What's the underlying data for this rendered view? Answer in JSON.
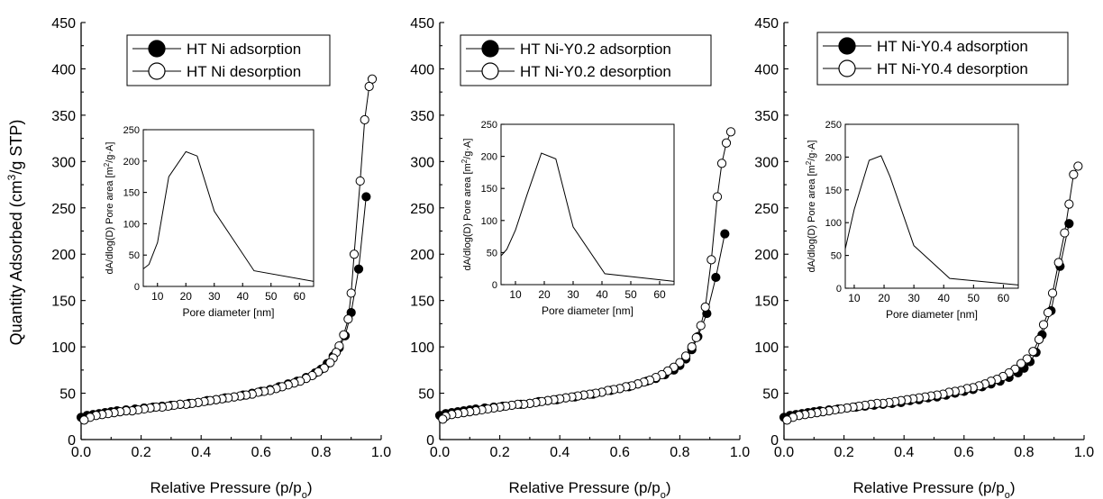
{
  "figure": {
    "ylabel_main": "Quantity Adsorbed (cm",
    "ylabel_sup": "3",
    "ylabel_tail": "/g STP)",
    "xlabel_main": "Relative Pressure (p/p",
    "xlabel_sub": "o",
    "xlabel_close": ")",
    "inset_ylabel_main": "dA/dlog(D) Pore area [m",
    "inset_ylabel_sup": "2",
    "inset_ylabel_tail": "/g·A]",
    "inset_xlabel": "Pore diameter [nm]"
  },
  "chart_data": [
    {
      "type": "scatter",
      "xlim": [
        0,
        1.0
      ],
      "ylim": [
        0,
        450
      ],
      "xticks": [
        "0.0",
        "0.2",
        "0.4",
        "0.6",
        "0.8",
        "1.0"
      ],
      "yticks": [
        "0",
        "50",
        "100",
        "150",
        "200",
        "250",
        "300",
        "350",
        "400",
        "450"
      ],
      "legend_position": "top",
      "series": [
        {
          "name": "HT Ni adsorption",
          "marker": "filled-circle",
          "x": [
            0.0,
            0.02,
            0.04,
            0.06,
            0.08,
            0.1,
            0.12,
            0.15,
            0.18,
            0.21,
            0.24,
            0.27,
            0.3,
            0.33,
            0.36,
            0.39,
            0.42,
            0.45,
            0.48,
            0.51,
            0.54,
            0.57,
            0.6,
            0.63,
            0.66,
            0.69,
            0.72,
            0.75,
            0.78,
            0.8,
            0.82,
            0.84,
            0.86,
            0.88,
            0.9,
            0.925,
            0.95
          ],
          "y": [
            24,
            26,
            27,
            28,
            29,
            30,
            31,
            32,
            33,
            34,
            35,
            36,
            37,
            38,
            39,
            40,
            42,
            43,
            45,
            46,
            48,
            50,
            52,
            54,
            57,
            60,
            63,
            67,
            72,
            76,
            82,
            90,
            99,
            112,
            137,
            184,
            262
          ]
        },
        {
          "name": "HT Ni desorption",
          "marker": "open-circle",
          "x": [
            0.97,
            0.96,
            0.945,
            0.93,
            0.91,
            0.9,
            0.89,
            0.875,
            0.86,
            0.85,
            0.84,
            0.83,
            0.81,
            0.79,
            0.77,
            0.75,
            0.73,
            0.71,
            0.69,
            0.67,
            0.65,
            0.63,
            0.61,
            0.59,
            0.57,
            0.55,
            0.53,
            0.51,
            0.49,
            0.47,
            0.45,
            0.43,
            0.41,
            0.39,
            0.37,
            0.35,
            0.33,
            0.31,
            0.29,
            0.27,
            0.25,
            0.23,
            0.21,
            0.19,
            0.17,
            0.15,
            0.13,
            0.11,
            0.09,
            0.07,
            0.05,
            0.03,
            0.01
          ],
          "y": [
            389,
            381,
            345,
            279,
            200,
            158,
            130,
            113,
            101,
            94,
            88,
            83,
            77,
            73,
            69,
            66,
            63,
            61,
            59,
            57,
            55,
            53,
            52,
            51,
            49,
            48,
            47,
            46,
            45,
            44,
            43,
            42,
            41,
            40,
            39,
            38,
            38,
            37,
            36,
            35,
            35,
            34,
            33,
            32,
            31,
            31,
            30,
            29,
            28,
            27,
            26,
            24,
            21
          ]
        }
      ],
      "inset": {
        "type": "line",
        "xlim": [
          5,
          65
        ],
        "ylim": [
          0,
          250
        ],
        "xticks": [
          "10",
          "20",
          "30",
          "40",
          "50",
          "60"
        ],
        "yticks": [
          "0",
          "50",
          "100",
          "150",
          "200",
          "250"
        ],
        "x": [
          5,
          7,
          10,
          14,
          20,
          24,
          30,
          44,
          65
        ],
        "y": [
          28,
          35,
          70,
          175,
          215,
          208,
          120,
          25,
          8
        ]
      }
    },
    {
      "type": "scatter",
      "xlim": [
        0,
        1.0
      ],
      "ylim": [
        0,
        450
      ],
      "xticks": [
        "0.0",
        "0.2",
        "0.4",
        "0.6",
        "0.8",
        "1.0"
      ],
      "yticks": [
        "0",
        "50",
        "100",
        "150",
        "200",
        "250",
        "300",
        "350",
        "400",
        "450"
      ],
      "legend_position": "top",
      "series": [
        {
          "name": "HT Ni-Y0.2 adsorption",
          "marker": "filled-circle",
          "x": [
            0.0,
            0.02,
            0.04,
            0.06,
            0.08,
            0.1,
            0.12,
            0.15,
            0.18,
            0.21,
            0.24,
            0.27,
            0.3,
            0.33,
            0.36,
            0.39,
            0.42,
            0.45,
            0.48,
            0.51,
            0.54,
            0.57,
            0.6,
            0.63,
            0.66,
            0.69,
            0.72,
            0.75,
            0.78,
            0.8,
            0.82,
            0.84,
            0.86,
            0.89,
            0.92,
            0.95
          ],
          "y": [
            26,
            28,
            29,
            30,
            31,
            32,
            33,
            34,
            35,
            36,
            37,
            38,
            39,
            41,
            42,
            43,
            45,
            46,
            48,
            49,
            51,
            53,
            55,
            57,
            60,
            63,
            66,
            70,
            75,
            80,
            87,
            97,
            111,
            136,
            175,
            222
          ]
        },
        {
          "name": "HT Ni-Y0.2 desorption",
          "marker": "open-circle",
          "x": [
            0.97,
            0.955,
            0.94,
            0.925,
            0.905,
            0.885,
            0.87,
            0.855,
            0.84,
            0.82,
            0.8,
            0.78,
            0.76,
            0.74,
            0.72,
            0.7,
            0.68,
            0.66,
            0.64,
            0.62,
            0.6,
            0.58,
            0.56,
            0.54,
            0.52,
            0.5,
            0.48,
            0.46,
            0.44,
            0.42,
            0.4,
            0.38,
            0.36,
            0.34,
            0.32,
            0.3,
            0.28,
            0.26,
            0.24,
            0.22,
            0.2,
            0.18,
            0.16,
            0.14,
            0.12,
            0.1,
            0.08,
            0.06,
            0.04,
            0.02,
            0.01
          ],
          "y": [
            332,
            320,
            298,
            262,
            194,
            143,
            123,
            110,
            100,
            90,
            83,
            78,
            74,
            70,
            67,
            64,
            62,
            60,
            58,
            57,
            55,
            54,
            53,
            51,
            50,
            49,
            48,
            47,
            46,
            45,
            44,
            43,
            42,
            41,
            40,
            39,
            38,
            38,
            37,
            36,
            35,
            34,
            33,
            32,
            31,
            30,
            29,
            28,
            27,
            25,
            22
          ]
        }
      ],
      "inset": {
        "type": "line",
        "xlim": [
          5,
          65
        ],
        "ylim": [
          0,
          250
        ],
        "xticks": [
          "10",
          "20",
          "30",
          "40",
          "50",
          "60"
        ],
        "yticks": [
          "0",
          "50",
          "100",
          "150",
          "200",
          "250"
        ],
        "x": [
          5,
          7,
          10,
          14,
          19,
          24,
          30,
          41,
          65
        ],
        "y": [
          45,
          55,
          85,
          140,
          205,
          196,
          90,
          17,
          5
        ]
      }
    },
    {
      "type": "scatter",
      "xlim": [
        0,
        1.0
      ],
      "ylim": [
        0,
        450
      ],
      "xticks": [
        "0.0",
        "0.2",
        "0.4",
        "0.6",
        "0.8",
        "1.0"
      ],
      "yticks": [
        "0",
        "50",
        "100",
        "150",
        "200",
        "250",
        "300",
        "350",
        "400",
        "450"
      ],
      "legend_position": "top",
      "series": [
        {
          "name": "HT Ni-Y0.4 adsorption",
          "marker": "filled-circle",
          "x": [
            0.0,
            0.02,
            0.04,
            0.06,
            0.08,
            0.1,
            0.12,
            0.15,
            0.18,
            0.21,
            0.24,
            0.27,
            0.3,
            0.33,
            0.36,
            0.39,
            0.42,
            0.45,
            0.48,
            0.51,
            0.54,
            0.57,
            0.6,
            0.63,
            0.66,
            0.69,
            0.72,
            0.75,
            0.78,
            0.8,
            0.82,
            0.84,
            0.86,
            0.89,
            0.92,
            0.95
          ],
          "y": [
            24,
            26,
            27,
            28,
            29,
            30,
            31,
            32,
            33,
            34,
            35,
            36,
            37,
            38,
            39,
            40,
            42,
            43,
            45,
            46,
            48,
            50,
            52,
            54,
            57,
            60,
            63,
            67,
            72,
            77,
            84,
            94,
            113,
            139,
            187,
            233
          ]
        },
        {
          "name": "HT Ni-Y0.4 desorption",
          "marker": "open-circle",
          "x": [
            0.98,
            0.965,
            0.95,
            0.935,
            0.915,
            0.895,
            0.88,
            0.865,
            0.85,
            0.83,
            0.81,
            0.79,
            0.77,
            0.75,
            0.73,
            0.71,
            0.69,
            0.67,
            0.65,
            0.63,
            0.61,
            0.59,
            0.57,
            0.55,
            0.53,
            0.51,
            0.49,
            0.47,
            0.45,
            0.43,
            0.41,
            0.39,
            0.37,
            0.35,
            0.33,
            0.31,
            0.29,
            0.27,
            0.25,
            0.23,
            0.21,
            0.19,
            0.17,
            0.15,
            0.13,
            0.11,
            0.09,
            0.07,
            0.05,
            0.03,
            0.01
          ],
          "y": [
            295,
            286,
            254,
            223,
            191,
            158,
            137,
            124,
            108,
            95,
            87,
            82,
            76,
            72,
            68,
            65,
            63,
            60,
            58,
            56,
            55,
            53,
            52,
            51,
            49,
            48,
            47,
            46,
            45,
            44,
            43,
            42,
            41,
            40,
            39,
            39,
            38,
            37,
            36,
            35,
            34,
            33,
            32,
            31,
            30,
            29,
            28,
            27,
            26,
            24,
            21
          ]
        }
      ],
      "inset": {
        "type": "line",
        "xlim": [
          7,
          65
        ],
        "ylim": [
          0,
          250
        ],
        "xticks": [
          "10",
          "20",
          "30",
          "40",
          "50",
          "60"
        ],
        "yticks": [
          "0",
          "50",
          "100",
          "150",
          "200",
          "250"
        ],
        "x": [
          7,
          10,
          15,
          19,
          22,
          30,
          42,
          65
        ],
        "y": [
          60,
          120,
          195,
          202,
          170,
          65,
          15,
          5
        ]
      }
    }
  ]
}
